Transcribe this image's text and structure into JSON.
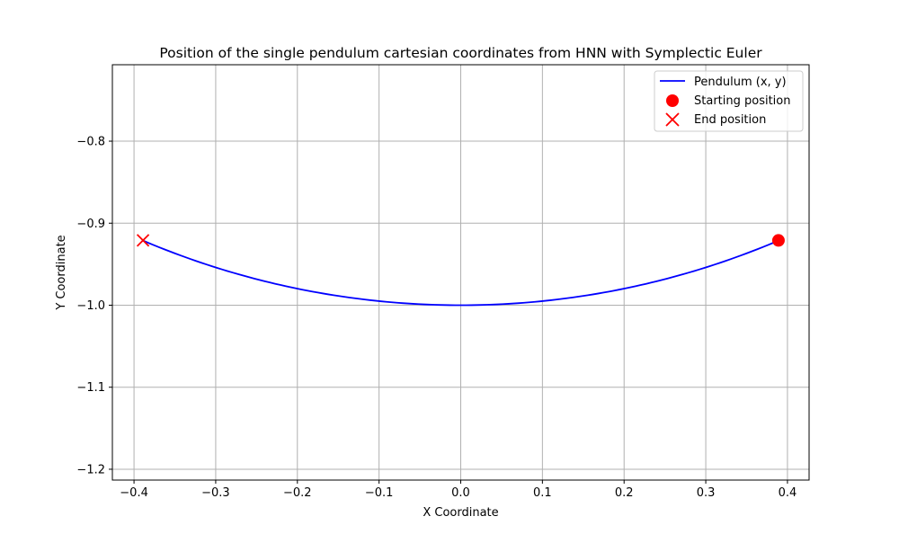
{
  "chart_data": {
    "type": "line",
    "title": "Position of the single pendulum cartesian coordinates from HNN with Symplectic Euler",
    "xlabel": "X Coordinate",
    "ylabel": "Y Coordinate",
    "xlim": [
      -0.4265,
      0.4265
    ],
    "ylim": [
      -1.2132,
      -0.7068
    ],
    "xticks": [
      -0.4,
      -0.3,
      -0.2,
      -0.1,
      0.0,
      0.1,
      0.2,
      0.3,
      0.4
    ],
    "xtick_labels": [
      "−0.4",
      "−0.3",
      "−0.2",
      "−0.1",
      "0.0",
      "0.1",
      "0.2",
      "0.3",
      "0.4"
    ],
    "yticks": [
      -0.8,
      -0.9,
      -1.0,
      -1.1,
      -1.2
    ],
    "ytick_labels": [
      "−0.8",
      "−0.9",
      "−1.0",
      "−1.1",
      "−1.2"
    ],
    "grid": true,
    "legend_position": "upper-right",
    "series": [
      {
        "name": "Pendulum (x, y)",
        "kind": "line",
        "color": "#0000ff",
        "length": 1.0,
        "x_from": -0.389,
        "x_to": 0.389
      },
      {
        "name": "Starting position",
        "kind": "marker-circle",
        "color": "#ff0000",
        "x": 0.389,
        "y": -0.921
      },
      {
        "name": "End position",
        "kind": "marker-x",
        "color": "#ff0000",
        "x": -0.389,
        "y": -0.921
      }
    ]
  }
}
